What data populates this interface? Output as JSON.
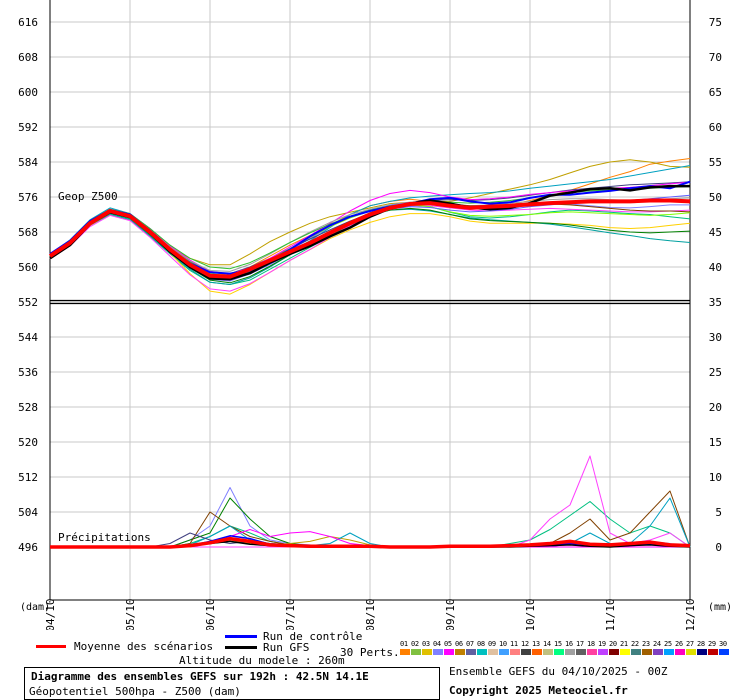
{
  "chart_data": {
    "type": "line",
    "left_ticks": [
      "616",
      "608",
      "600",
      "592",
      "584",
      "576",
      "568",
      "560",
      "552",
      "544",
      "536",
      "528",
      "520",
      "512",
      "504",
      "496"
    ],
    "right_ticks": [
      "75",
      "70",
      "65",
      "60",
      "55",
      "50",
      "45",
      "40",
      "35",
      "30",
      "25",
      "20",
      "15",
      "10",
      "5",
      "0"
    ],
    "x_ticks": [
      "04/10",
      "05/10",
      "06/10",
      "07/10",
      "08/10",
      "09/10",
      "10/10",
      "11/10",
      "12/10"
    ],
    "left_unit": "(dam)",
    "right_unit": "(mm)",
    "z500_label": "Geop Z500",
    "precip_label": "Précipitations",
    "z500_range": [
      552,
      616
    ],
    "precip_range": [
      0,
      75
    ],
    "steps": [
      0,
      6,
      12,
      18,
      24,
      30,
      36,
      42,
      48,
      54,
      60,
      66,
      72,
      78,
      84,
      90,
      96,
      102,
      108,
      114,
      120,
      126,
      132,
      138,
      144,
      150,
      156,
      162,
      168,
      174,
      180,
      186,
      192
    ],
    "z500": {
      "mean": [
        562.5,
        565.5,
        570,
        572.8,
        571.6,
        568,
        564,
        560.5,
        558,
        557.8,
        559.5,
        561.5,
        563.5,
        565.5,
        567.8,
        570,
        572,
        573.5,
        574.4,
        574.6,
        574,
        573.5,
        573.8,
        574,
        574.3,
        574.6,
        574.8,
        575,
        575,
        575,
        575.2,
        575.2,
        575
      ],
      "gfs": [
        562,
        565,
        569.8,
        572.5,
        571.4,
        567.8,
        563.5,
        560,
        557.4,
        557.2,
        558.6,
        561,
        563,
        564.8,
        567,
        569,
        571.5,
        573.4,
        574.5,
        575.2,
        574.5,
        573.6,
        573.2,
        573.5,
        574.6,
        576.3,
        577,
        577.8,
        578,
        577.5,
        578.2,
        578.5,
        578.5
      ],
      "control": [
        563,
        566,
        570.5,
        573,
        572,
        568.2,
        564,
        560.8,
        558.8,
        558.5,
        559.2,
        561.5,
        564,
        567,
        569.5,
        571.5,
        572.8,
        573.8,
        574.5,
        575.5,
        575.8,
        575,
        574.5,
        574.8,
        575.8,
        576.5,
        576.5,
        577,
        577.4,
        578,
        578.5,
        578,
        579.5
      ],
      "members": [
        [
          562,
          565,
          570,
          572.6,
          571.6,
          568,
          564,
          561,
          559,
          558,
          560,
          562.5,
          565,
          567.2,
          569.5,
          572,
          574,
          575,
          575.5,
          575,
          574,
          573.2,
          573.5,
          574.2,
          575.2,
          576.3,
          577.5,
          579,
          580.5,
          581.8,
          583.5,
          584.2,
          584.8
        ],
        [
          562.5,
          565.5,
          570.5,
          573.2,
          572,
          568.5,
          564.5,
          562,
          560.5,
          560.5,
          563,
          565.8,
          568,
          570,
          571.5,
          572.5,
          573.5,
          574.5,
          574.8,
          575,
          575,
          575.8,
          576.8,
          577.8,
          578.8,
          580,
          581.5,
          583,
          584,
          584.5,
          584,
          583,
          582.8
        ],
        [
          562,
          565,
          569.5,
          572,
          570.8,
          567,
          563,
          559.2,
          556.5,
          556,
          557,
          559.5,
          562,
          564.5,
          567,
          569.8,
          572,
          573.5,
          574.2,
          573.8,
          572.5,
          571.5,
          571.2,
          571.5,
          572,
          572.6,
          573,
          572.8,
          572.5,
          572.2,
          572,
          571.5,
          571
        ],
        [
          561.8,
          564.8,
          569.5,
          572.2,
          571.2,
          567.4,
          563.2,
          558.5,
          554.5,
          553.8,
          556,
          558.8,
          561.5,
          564,
          566.5,
          568.5,
          570.2,
          571.5,
          572.2,
          572.2,
          571.5,
          570.5,
          570,
          570,
          570,
          570,
          569.8,
          569.5,
          569,
          568.8,
          569,
          569.5,
          570
        ],
        [
          563,
          566.2,
          570.8,
          573.5,
          572.2,
          568.8,
          564.8,
          561,
          558,
          557.5,
          559,
          561.2,
          563.5,
          566,
          569,
          572,
          574,
          575,
          575.8,
          576.2,
          576.5,
          576.8,
          577,
          577.4,
          578,
          578.5,
          579,
          579.5,
          580,
          580.8,
          581.6,
          582.4,
          583.2
        ],
        [
          562.2,
          565.2,
          569.8,
          572.4,
          571.4,
          568,
          564.2,
          560.5,
          557.2,
          556.8,
          558.5,
          561,
          563.8,
          566.5,
          569.2,
          571.5,
          573.2,
          574.2,
          574.8,
          574.6,
          574,
          573.5,
          573.8,
          574.2,
          574.5,
          574.6,
          574.4,
          574,
          573.6,
          573.5,
          573.8,
          574.2,
          574.2
        ],
        [
          562,
          565,
          569.6,
          572.2,
          571,
          567.2,
          563.2,
          559.5,
          556.5,
          556,
          557.5,
          560,
          562.8,
          565.5,
          568,
          570.2,
          572,
          573,
          573.2,
          572.8,
          572,
          571.2,
          570.8,
          570.5,
          570.2,
          569.8,
          569.2,
          568.5,
          567.8,
          567.2,
          566.5,
          566,
          565.6
        ],
        [
          562.6,
          565.8,
          570.4,
          573,
          572,
          568.6,
          564.6,
          561.2,
          558.8,
          558.5,
          560,
          562,
          564.2,
          566.4,
          568.5,
          570.5,
          572.2,
          573.6,
          574.6,
          575.2,
          575.4,
          575.2,
          575.4,
          575.8,
          576.4,
          577,
          577.6,
          578,
          578.4,
          578.8,
          579,
          579.2,
          579.5
        ],
        [
          561.8,
          564.8,
          569.2,
          571.8,
          570.6,
          566.8,
          562.5,
          558.2,
          555,
          554.5,
          556.2,
          558.8,
          561.5,
          564,
          566.8,
          569.5,
          571.8,
          573.2,
          574,
          574,
          573.5,
          573,
          572.8,
          573,
          573.2,
          573.4,
          573.2,
          573,
          572.8,
          572.6,
          572.6,
          572.8,
          573
        ],
        [
          562.4,
          565.4,
          570,
          572.6,
          571.6,
          568.2,
          564.4,
          561,
          558.5,
          558,
          559.5,
          561.8,
          564.2,
          566.8,
          569.2,
          571.2,
          572.8,
          573.8,
          574.2,
          573.8,
          572.6,
          571.8,
          571.6,
          571.8,
          572,
          572.4,
          572.6,
          572.4,
          572.2,
          572,
          571.8,
          572,
          572.4
        ],
        [
          562.8,
          565.8,
          570.6,
          573.2,
          572.2,
          568.8,
          564.8,
          561.6,
          559,
          558.4,
          559.8,
          562,
          564.6,
          567.2,
          570,
          572.8,
          575.2,
          576.8,
          577.5,
          577,
          576,
          575.4,
          575.6,
          576,
          576.6,
          577,
          577.4,
          577.8,
          578,
          578.2,
          578.6,
          579,
          579.4
        ],
        [
          562,
          565,
          569.6,
          572.4,
          571.2,
          567.4,
          563.4,
          559.8,
          557,
          556.4,
          557.8,
          560.2,
          562.8,
          565.2,
          567.6,
          569.8,
          571.8,
          573,
          573.4,
          573,
          572,
          571,
          570.6,
          570.4,
          570.2,
          570,
          569.6,
          569,
          568.4,
          568,
          567.8,
          568,
          568.2
        ],
        [
          562.6,
          565.6,
          570.2,
          572.8,
          571.8,
          568.4,
          564.6,
          561.4,
          559.2,
          559,
          560.6,
          563,
          565.6,
          568,
          570.2,
          572,
          573.2,
          574,
          574.4,
          574.4,
          574.2,
          574,
          574.2,
          574.6,
          575,
          575.4,
          575.6,
          575.6,
          575.4,
          575.2,
          575.4,
          575.6,
          575.8
        ],
        [
          562.2,
          565.2,
          569.8,
          572.4,
          571.4,
          567.8,
          563.8,
          560.2,
          557.5,
          557,
          558.4,
          560.6,
          563,
          565.4,
          567.8,
          570,
          572,
          573.2,
          573.8,
          573.6,
          573,
          572.6,
          572.8,
          573.2,
          573.8,
          574.2,
          574.6,
          574.8,
          575,
          575.2,
          575.6,
          576,
          576.4
        ],
        [
          562.4,
          565.4,
          570,
          572.6,
          571.6,
          568,
          564,
          560.6,
          558,
          557.4,
          558.8,
          561,
          563.4,
          565.8,
          568.2,
          570.4,
          572.4,
          573.8,
          574.6,
          574.8,
          574.4,
          574,
          574,
          574.2,
          574.4,
          574.4,
          574.2,
          573.8,
          573.4,
          573,
          572.8,
          572.8,
          572.6
        ],
        [
          563,
          566,
          570.6,
          573.2,
          572.2,
          568.8,
          565,
          562,
          560,
          559.6,
          561,
          563.2,
          565.6,
          567.8,
          569.8,
          571.6,
          573,
          574,
          574.6,
          574.8,
          574.8,
          574.6,
          574.8,
          575.2,
          575.8,
          576.4,
          577,
          577.4,
          577.6,
          577.8,
          578,
          578.2,
          578.4
        ]
      ]
    },
    "precip": {
      "mean": [
        0,
        0,
        0,
        0,
        0,
        0,
        0,
        0.2,
        0.6,
        1.2,
        0.8,
        0.3,
        0.2,
        0.1,
        0.1,
        0.1,
        0.1,
        0,
        0,
        0,
        0.1,
        0.1,
        0.1,
        0.2,
        0.3,
        0.5,
        0.8,
        0.4,
        0.3,
        0.5,
        0.7,
        0.3,
        0.2
      ],
      "gfs": [
        0,
        0,
        0,
        0,
        0,
        0,
        0,
        0.3,
        0.5,
        0.8,
        0.4,
        0.2,
        0.1,
        0,
        0,
        0,
        0,
        0,
        0,
        0,
        0,
        0,
        0,
        0,
        0.1,
        0.2,
        0.3,
        0.1,
        0,
        0.2,
        0.3,
        0.1,
        0
      ],
      "control": [
        0,
        0,
        0,
        0,
        0,
        0,
        0,
        0.2,
        0.8,
        1.6,
        1.2,
        0.4,
        0.2,
        0.1,
        0,
        0,
        0,
        0,
        0,
        0,
        0,
        0,
        0,
        0.1,
        0.2,
        0.3,
        0.5,
        0.3,
        0.2,
        0.3,
        0.4,
        0.2,
        0.1
      ],
      "members": [
        [
          0,
          0,
          0,
          0,
          0,
          0,
          0,
          0.5,
          1.5,
          3,
          2,
          0.8,
          0.3,
          0,
          0,
          0,
          0,
          0,
          0,
          0,
          0,
          0,
          0,
          0.5,
          1,
          2.5,
          4.5,
          6.5,
          4,
          2,
          3,
          2,
          0
        ],
        [
          0,
          0,
          0,
          0,
          0,
          0,
          0,
          1,
          3,
          8.5,
          3,
          1,
          0.5,
          0.3,
          0,
          0,
          0,
          0,
          0,
          0,
          0,
          0,
          0,
          0,
          0,
          0,
          0.5,
          0.3,
          0.2,
          0.5,
          0.8,
          0.5,
          0
        ],
        [
          0,
          0,
          0,
          0,
          0,
          0,
          0,
          0,
          0,
          0,
          0,
          0,
          0,
          0,
          0,
          0,
          0,
          0,
          0,
          0,
          0,
          0,
          0,
          0,
          1,
          4,
          6,
          13,
          2,
          0.5,
          1,
          2,
          0
        ],
        [
          0,
          0,
          0,
          0,
          0,
          0,
          0,
          1,
          2,
          7,
          4,
          1.5,
          0.5,
          0.2,
          0,
          0,
          0,
          0,
          0,
          0,
          0,
          0,
          0,
          0,
          0,
          0,
          0,
          0,
          0,
          0,
          0,
          0,
          0
        ],
        [
          0,
          0,
          0,
          0,
          0,
          0,
          0,
          0.5,
          5,
          3,
          1.5,
          0.8,
          0.3,
          0.1,
          0,
          0,
          0,
          0,
          0,
          0,
          0,
          0,
          0,
          0,
          0,
          0.5,
          2,
          4,
          1,
          2,
          5,
          8,
          0
        ],
        [
          0,
          0,
          0,
          0,
          0,
          0,
          0,
          0,
          0.5,
          1,
          0.5,
          0.3,
          0.5,
          0.8,
          1.5,
          1,
          0.3,
          0,
          0,
          0,
          0,
          0,
          0,
          0,
          0,
          0,
          0,
          0,
          0,
          0,
          0,
          0,
          0
        ],
        [
          0,
          0,
          0,
          0,
          0,
          0,
          0,
          0.3,
          1.5,
          3,
          1,
          0.5,
          0.3,
          0.2,
          0.5,
          2,
          0.5,
          0,
          0,
          0,
          0,
          0,
          0,
          0,
          0,
          0.2,
          0.5,
          2,
          0.5,
          0.5,
          3,
          7,
          0
        ],
        [
          0,
          0,
          0,
          0,
          0,
          0,
          0.5,
          2,
          1,
          0.5,
          0.8,
          0.5,
          0.3,
          0.1,
          0,
          0,
          0,
          0,
          0,
          0,
          0,
          0,
          0,
          0,
          0,
          0,
          0,
          0,
          0,
          0,
          0,
          0,
          0
        ],
        [
          0,
          0,
          0,
          0,
          0,
          0,
          0,
          0.2,
          0.5,
          1.5,
          2.5,
          1.5,
          2,
          2.2,
          1.5,
          0.5,
          0.2,
          0,
          0,
          0,
          0,
          0,
          0,
          0,
          0,
          0,
          0,
          0,
          0,
          0,
          0,
          0,
          0
        ]
      ]
    }
  },
  "legend": {
    "mean_label": "Moyenne des scénarios",
    "control_label": "Run de contrôle",
    "gfs_label": "Run GFS",
    "perts_label": "30 Perts.",
    "altitude": "Altitude du modele : 260m"
  },
  "info": {
    "title": "Diagramme des ensembles GEFS sur 192h : 42.5N 14.1E",
    "subtitle": "Géopotentiel 500hpa - Z500 (dam)",
    "ensemble": "Ensemble GEFS du 04/10/2025 - 00Z",
    "copyright": "Copyright 2025 Meteociel.fr"
  },
  "member_numbers": [
    "01",
    "02",
    "03",
    "04",
    "05",
    "06",
    "07",
    "08",
    "09",
    "10",
    "11",
    "12",
    "13",
    "14",
    "15",
    "16",
    "17",
    "18",
    "19",
    "20",
    "21",
    "22",
    "23",
    "24",
    "25",
    "26",
    "27",
    "28",
    "29",
    "30"
  ],
  "colors": {
    "mean": "#ff0000",
    "control": "#0000ff",
    "gfs": "#000000",
    "members": [
      "#ff8000",
      "#c0a000",
      "#00c080",
      "#ffd000",
      "#00a0c0",
      "#8080ff",
      "#00a0a0",
      "#404080",
      "#ff40ff",
      "#80ff00",
      "#ff00ff",
      "#008000",
      "#a0a0a0",
      "#6060ff",
      "#804000",
      "#30c030"
    ],
    "swatches": [
      "#ff8000",
      "#80c040",
      "#e0c000",
      "#8080ff",
      "#ff00ff",
      "#c08000",
      "#6060a0",
      "#00c0c0",
      "#e0c0a0",
      "#40a0ff",
      "#ff8080",
      "#404040",
      "#ff6000",
      "#c0c080",
      "#00ff80",
      "#a0a0a0",
      "#606060",
      "#ff40a0",
      "#c040ff",
      "#800000",
      "#ffff00",
      "#408080",
      "#a06000",
      "#8040c0",
      "#00a0ff",
      "#ff00c0",
      "#e0e000",
      "#000080",
      "#c00000",
      "#0040ff"
    ]
  }
}
